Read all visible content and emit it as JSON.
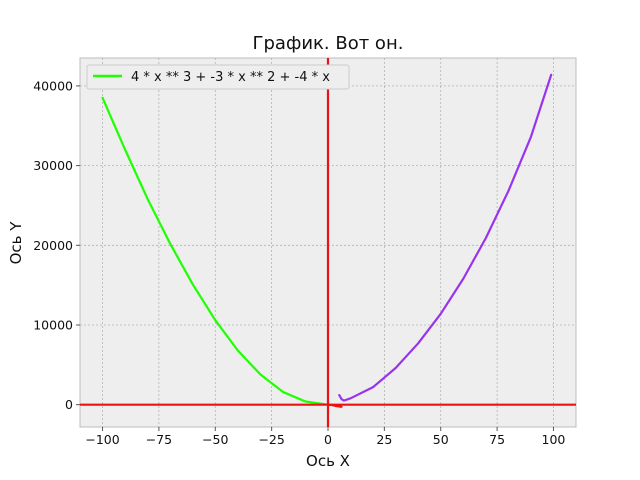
{
  "chart_data": {
    "type": "line",
    "title": "График. Вот он.",
    "xlabel": "Ось X",
    "ylabel": "Ось Y",
    "xlim": [
      -110,
      110
    ],
    "ylim": [
      -2800,
      43500
    ],
    "xticks": [
      -100,
      -75,
      -50,
      -25,
      0,
      25,
      50,
      75,
      100
    ],
    "xtick_labels": [
      "−100",
      "−75",
      "−50",
      "−25",
      "0",
      "25",
      "50",
      "75",
      "100"
    ],
    "yticks": [
      0,
      10000,
      20000,
      30000,
      40000
    ],
    "ytick_labels": [
      "0",
      "10000",
      "20000",
      "30000",
      "40000"
    ],
    "grid": true,
    "legend": {
      "position": "top-left",
      "entries": [
        "4 * x ** 3 + -3 * x ** 2 + -4 * x"
      ]
    },
    "reference_lines": [
      {
        "orientation": "horizontal",
        "value": 0,
        "color": "#ee1111"
      },
      {
        "orientation": "vertical",
        "value": 0,
        "color": "#ee1111"
      }
    ],
    "series": [
      {
        "name": "4 * x ** 3 + -3 * x ** 2 + -4 * x",
        "color": "#1eff00",
        "x": [
          -100,
          -90,
          -80,
          -70,
          -60,
          -50,
          -40,
          -30,
          -20,
          -10,
          0
        ],
        "y": [
          38500,
          32000,
          25800,
          20200,
          15100,
          10600,
          6800,
          3800,
          1600,
          400,
          0
        ]
      },
      {
        "color": "#9933ee",
        "x": [
          5,
          6,
          7,
          8,
          10,
          20,
          30,
          40,
          50,
          60,
          70,
          80,
          90,
          99
        ],
        "y": [
          1200,
          700,
          520,
          600,
          800,
          2200,
          4600,
          7700,
          11400,
          15800,
          20900,
          26800,
          33600,
          41400
        ]
      },
      {
        "color": "#ee1111",
        "x": [
          0,
          2,
          4,
          6
        ],
        "y": [
          0,
          -60,
          -180,
          -260
        ]
      }
    ]
  }
}
